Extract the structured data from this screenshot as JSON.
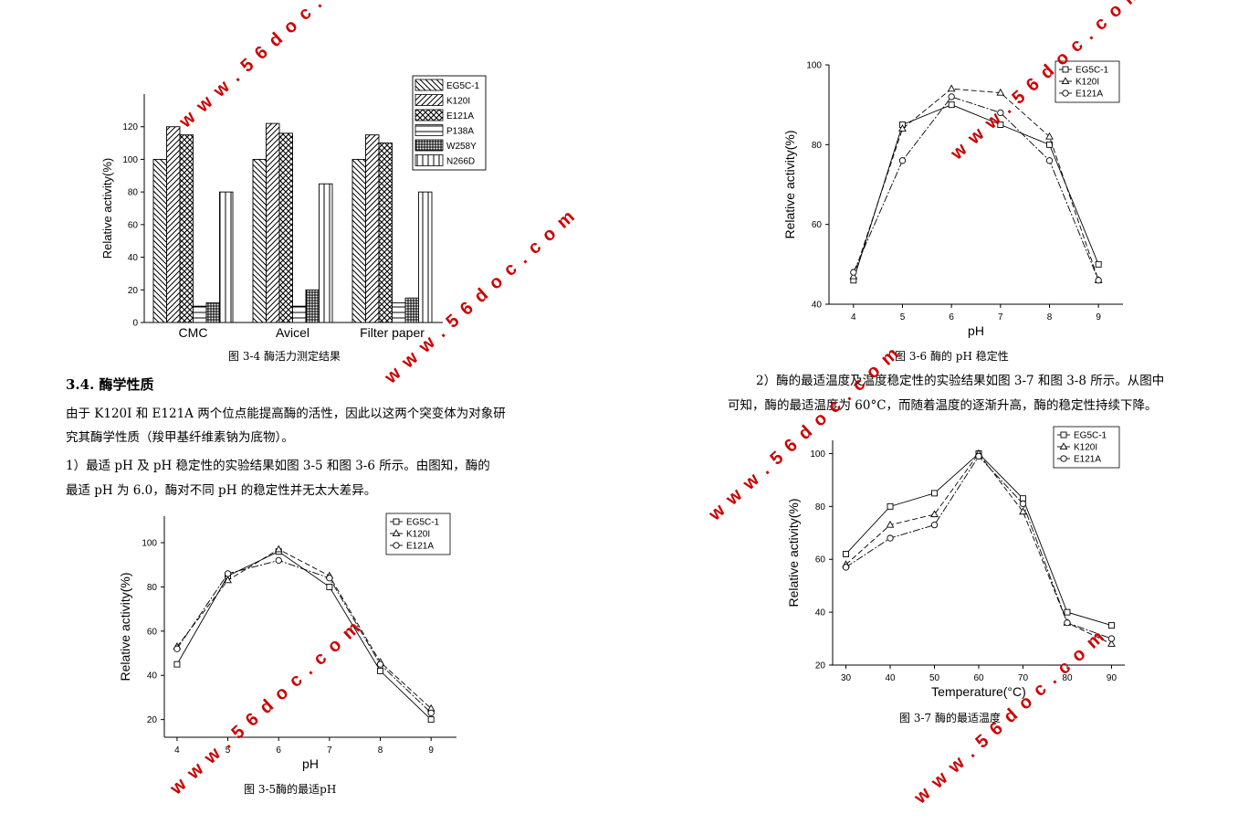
{
  "watermark": "w w w . 5 6 d o c . c o m",
  "captions": {
    "fig34": "图 3-4  酶活力测定结果",
    "fig35": "图 3-5酶的最适pH",
    "fig36": "图 3-6  酶的 pH 稳定性",
    "fig37": "图 3-7  酶的最适温度"
  },
  "text": {
    "heading": "3.4.    酶学性质",
    "p1_line1": "由于 K120I 和 E121A 两个位点能提高酶的活性，因此以这两个突变体为对象研",
    "p1_line2": "究其酶学性质（羧甲基纤维素钠为底物）。",
    "p2_line1": "    1）最适 pH 及 pH 稳定性的实验结果如图 3-5 和图 3-6 所示。由图知，酶的",
    "p2_line2": "最适 pH 为 6.0，酶对不同 pH 的稳定性并无太大差异。",
    "p3_line1": "2）酶的最适温度及温度稳定性的实验结果如图 3-7 和图 3-8 所示。从图中",
    "p3_line2": "可知，酶的最适温度为 60°C，而随着温度的逐渐升高，酶的稳定性持续下降。"
  },
  "chart_data": [
    {
      "id": "fig34",
      "type": "bar",
      "title": "",
      "xlabel": "",
      "ylabel": "Relative activity(%)",
      "ylim": [
        0,
        140
      ],
      "yticks": [
        0,
        20,
        40,
        60,
        80,
        100,
        120
      ],
      "categories": [
        "CMC",
        "Avicel",
        "Filter paper"
      ],
      "legend_position": "top-right",
      "series": [
        {
          "name": "EG5C-1",
          "pattern": "diag-back",
          "values": [
            100,
            100,
            100
          ]
        },
        {
          "name": "K120I",
          "pattern": "diag-fwd",
          "values": [
            120,
            122,
            115
          ]
        },
        {
          "name": "E121A",
          "pattern": "cross",
          "values": [
            115,
            116,
            110
          ]
        },
        {
          "name": "P138A",
          "pattern": "hlines",
          "values": [
            10,
            10,
            12
          ]
        },
        {
          "name": "W258Y",
          "pattern": "grid",
          "values": [
            12,
            20,
            15
          ]
        },
        {
          "name": "N266D",
          "pattern": "vlines",
          "values": [
            80,
            85,
            80
          ]
        }
      ]
    },
    {
      "id": "fig35",
      "type": "line",
      "title": "",
      "xlabel": "pH",
      "ylabel": "Relative activity(%)",
      "x": [
        4,
        5,
        6,
        7,
        8,
        9
      ],
      "xticks": [
        4,
        5,
        6,
        7,
        8,
        9
      ],
      "xlim": [
        3.75,
        9.5
      ],
      "ylim": [
        12,
        112
      ],
      "yticks": [
        20,
        40,
        60,
        80,
        100
      ],
      "legend_position": "top-right",
      "series": [
        {
          "name": "EG5C-1",
          "marker": "square",
          "values": [
            45,
            85,
            96,
            80,
            42,
            20
          ]
        },
        {
          "name": "K120I",
          "marker": "triangle",
          "values": [
            53,
            83,
            97,
            85,
            46,
            25
          ]
        },
        {
          "name": "E121A",
          "marker": "circle",
          "values": [
            52,
            86,
            92,
            84,
            45,
            23
          ]
        }
      ]
    },
    {
      "id": "fig36",
      "type": "line",
      "title": "",
      "xlabel": "pH",
      "ylabel": "Relative activity(%)",
      "x": [
        4,
        5,
        6,
        7,
        8,
        9
      ],
      "xticks": [
        4,
        5,
        6,
        7,
        8,
        9
      ],
      "xlim": [
        3.5,
        9.5
      ],
      "ylim": [
        40,
        100
      ],
      "yticks": [
        40,
        60,
        80,
        100
      ],
      "legend_position": "top-right",
      "series": [
        {
          "name": "EG5C-1",
          "marker": "square",
          "values": [
            46,
            85,
            90,
            85,
            80,
            50
          ]
        },
        {
          "name": "K120I",
          "marker": "triangle",
          "values": [
            47,
            84,
            94,
            93,
            82,
            46
          ]
        },
        {
          "name": "E121A",
          "marker": "circle",
          "values": [
            48,
            76,
            92,
            88,
            76,
            46
          ]
        }
      ]
    },
    {
      "id": "fig37",
      "type": "line",
      "title": "",
      "xlabel": "Temperature(°C)",
      "ylabel": "Relative activity(%)",
      "x": [
        30,
        40,
        50,
        60,
        70,
        80,
        90
      ],
      "xticks": [
        30,
        40,
        50,
        60,
        70,
        80,
        90
      ],
      "xlim": [
        27,
        93
      ],
      "ylim": [
        20,
        105
      ],
      "yticks": [
        20,
        40,
        60,
        80,
        100
      ],
      "legend_position": "top-right",
      "series": [
        {
          "name": "EG5C-1",
          "marker": "square",
          "values": [
            62,
            80,
            85,
            100,
            83,
            40,
            35
          ]
        },
        {
          "name": "K120I",
          "marker": "triangle",
          "values": [
            58,
            73,
            77,
            100,
            78,
            36,
            28
          ]
        },
        {
          "name": "E121A",
          "marker": "circle",
          "values": [
            57,
            68,
            73,
            99,
            81,
            36,
            30
          ]
        }
      ]
    }
  ]
}
